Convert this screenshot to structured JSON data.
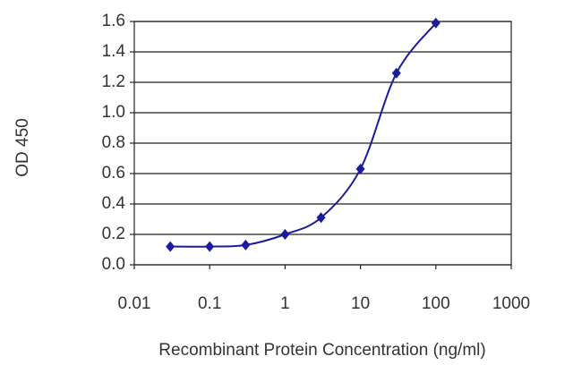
{
  "chart_data": {
    "type": "line",
    "x_label": "Recombinant Protein Concentration (ng/ml)",
    "y_label": "OD 450",
    "x": [
      0.03,
      0.1,
      0.3,
      1,
      3,
      10,
      30,
      100
    ],
    "series": [
      {
        "color": "#1c1c9a",
        "values": [
          0.12,
          0.12,
          0.13,
          0.2,
          0.31,
          0.63,
          1.26,
          1.59
        ]
      }
    ],
    "x_log": true,
    "xlim": [
      0.01,
      1000
    ],
    "xticks": [
      0.01,
      0.1,
      1,
      10,
      100,
      1000
    ],
    "ylim": [
      0,
      1.6
    ],
    "yticks": [
      {
        "value": 0,
        "label": "0.0"
      },
      0.2,
      0.4,
      0.6,
      0.8,
      {
        "value": 1,
        "label": "1.0"
      },
      1.2,
      1.4,
      1.6
    ],
    "grid": true
  }
}
